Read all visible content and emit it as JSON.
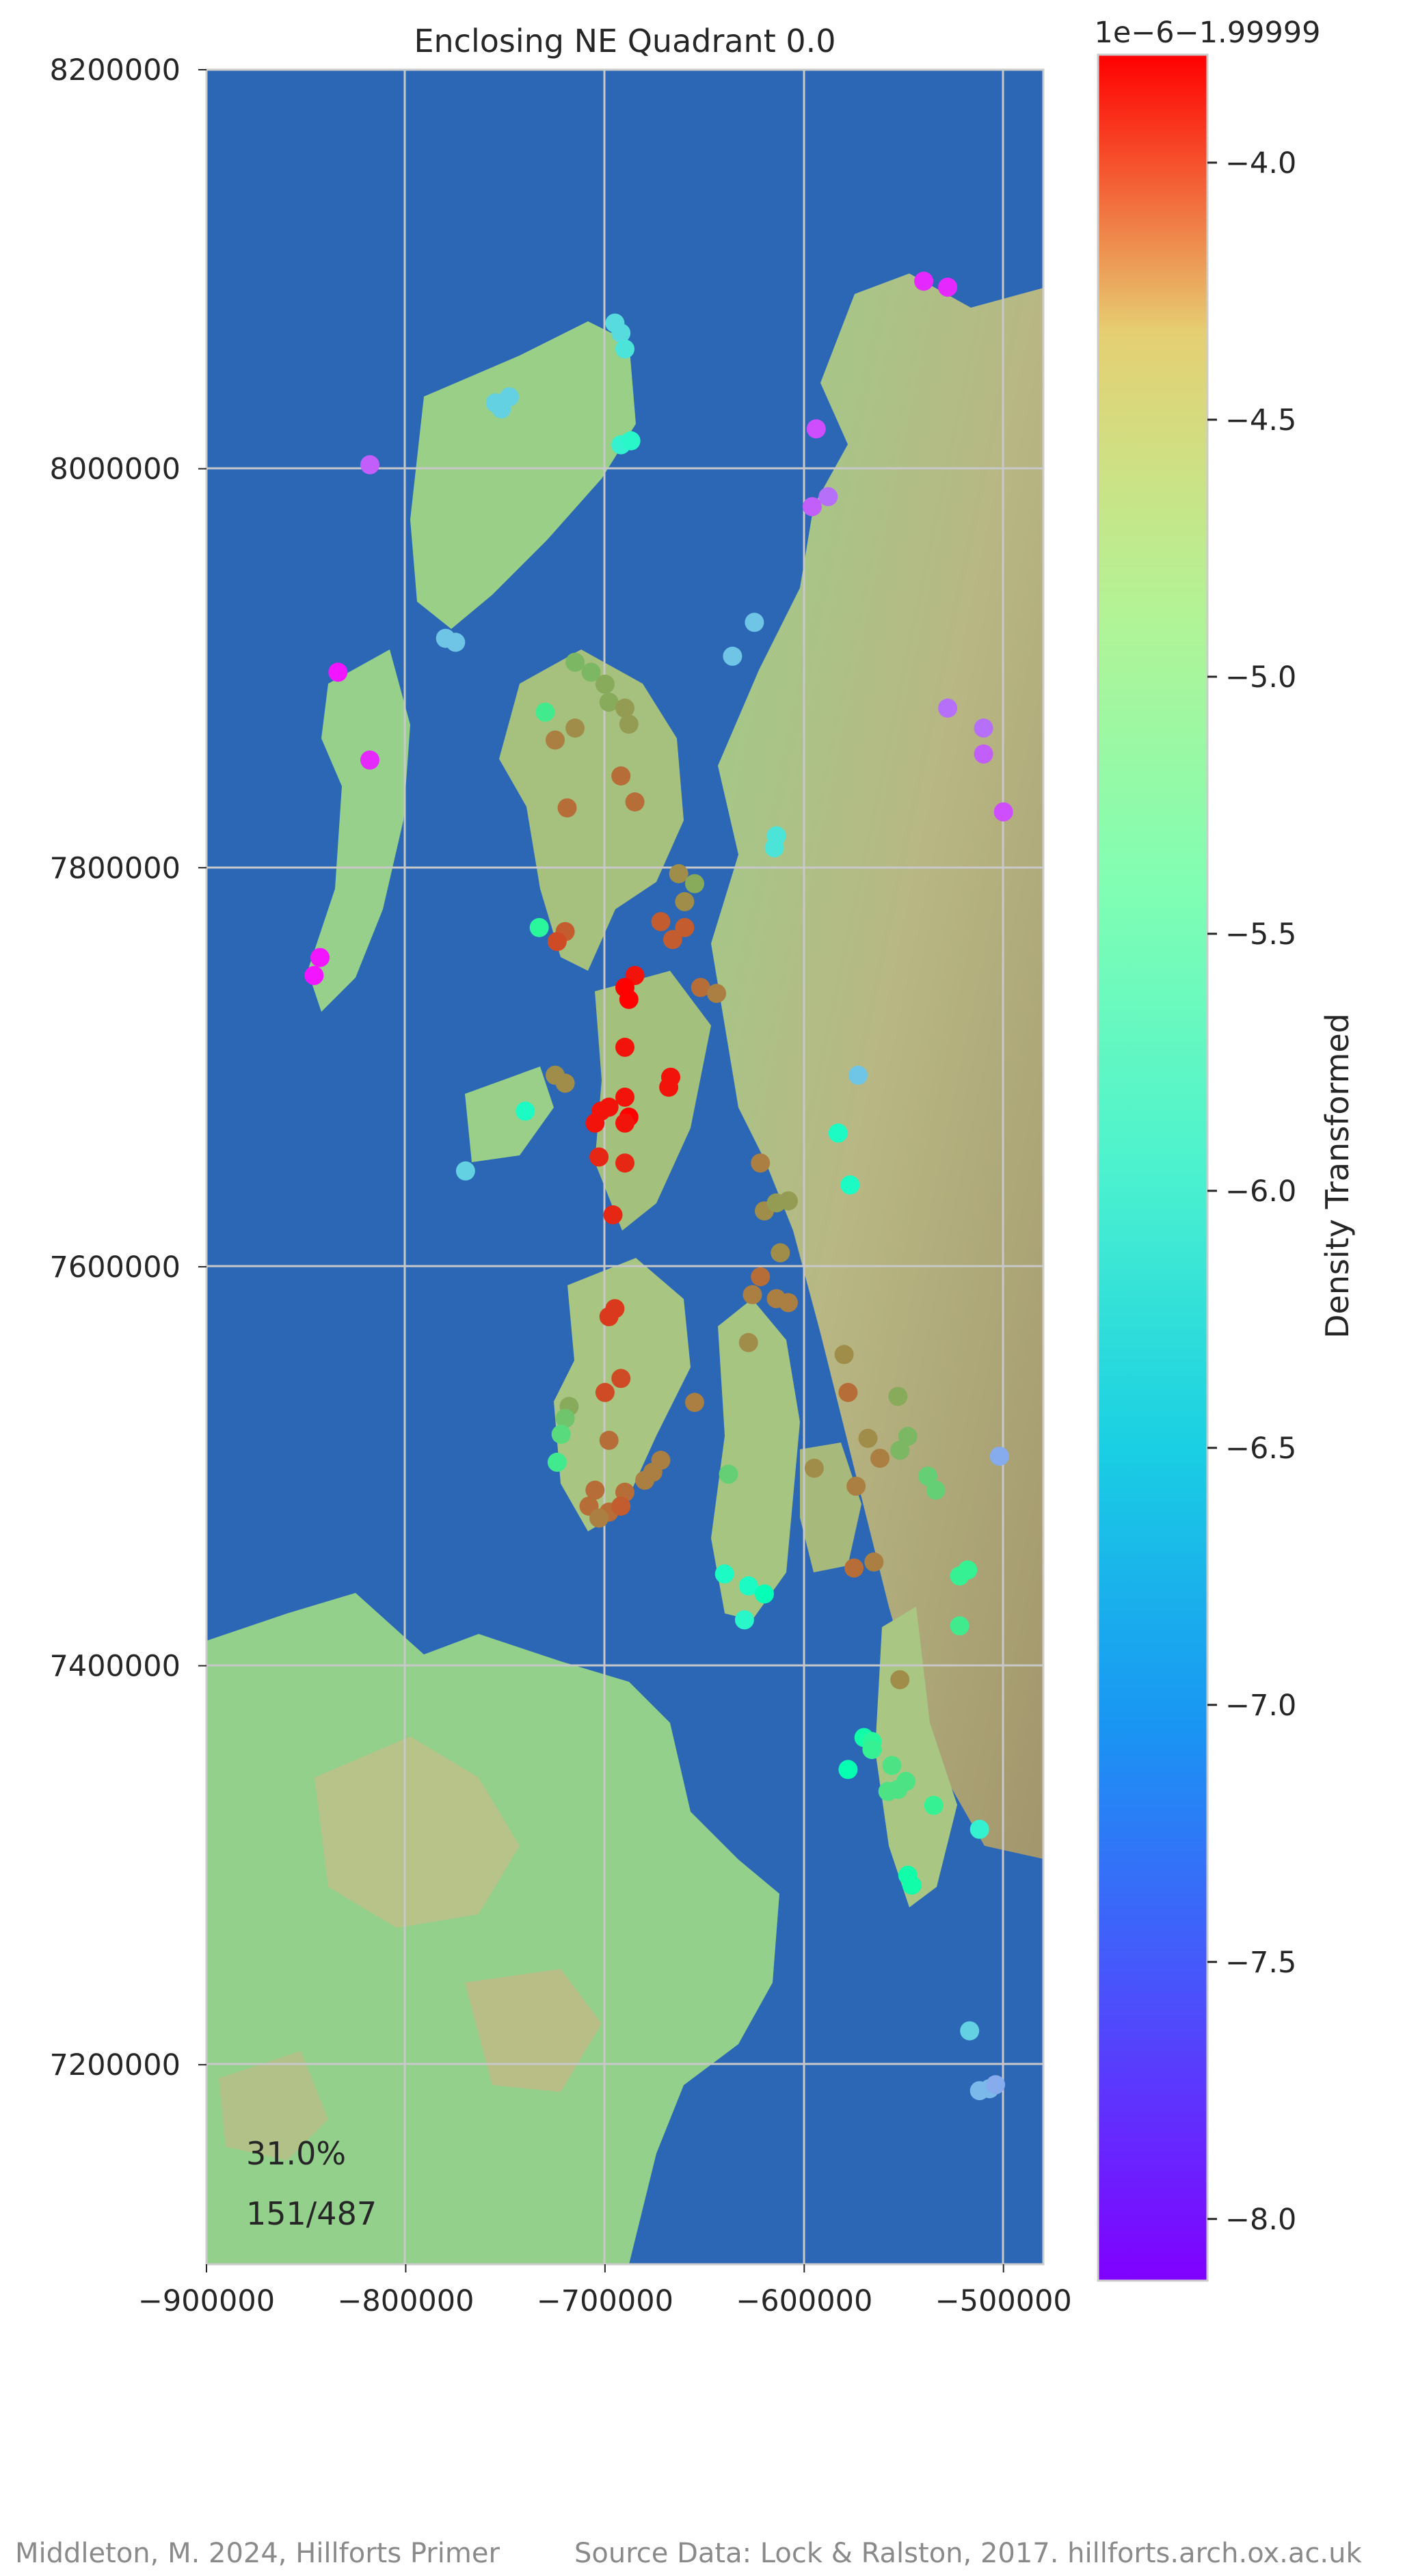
{
  "chart_data": {
    "type": "scatter",
    "title": "Enclosing NE Quadrant 0.0",
    "xlabel": "",
    "ylabel": "",
    "xlim": [
      -900000,
      -480000
    ],
    "ylim": [
      7100000,
      8200000
    ],
    "x_ticks": [
      -900000,
      -800000,
      -700000,
      -600000,
      -500000
    ],
    "x_tick_labels": [
      "−900000",
      "−800000",
      "−700000",
      "−600000",
      "−500000"
    ],
    "y_ticks": [
      8200000,
      8000000,
      7800000,
      7600000,
      7400000,
      7200000
    ],
    "y_tick_labels": [
      "8200000",
      "8000000",
      "7800000",
      "7600000",
      "7400000",
      "7200000"
    ],
    "grid": true,
    "annotations": [
      "31.0%",
      "151/487"
    ],
    "colorbar": {
      "label": "Density Transformed",
      "offset_text": "1e−6−1.99999",
      "colormap": "rainbow",
      "range": [
        -8.12,
        -3.79
      ],
      "ticks": [
        -4.0,
        -4.5,
        -5.0,
        -5.5,
        -6.0,
        -6.5,
        -7.0,
        -7.5,
        -8.0
      ],
      "tick_labels": [
        "−4.0",
        "−4.5",
        "−5.0",
        "−5.5",
        "−6.0",
        "−6.5",
        "−7.0",
        "−7.5",
        "−8.0"
      ]
    },
    "points": [
      [
        -540000,
        8094000,
        -7.9
      ],
      [
        -528000,
        8091000,
        -7.9
      ],
      [
        -818000,
        8002000,
        -7.6
      ],
      [
        -695000,
        8073000,
        -6.7
      ],
      [
        -692000,
        8068000,
        -6.7
      ],
      [
        -690000,
        8060000,
        -6.6
      ],
      [
        -755000,
        8033000,
        -6.8
      ],
      [
        -748000,
        8036000,
        -6.8
      ],
      [
        -752000,
        8030000,
        -6.8
      ],
      [
        -692000,
        8012000,
        -6.4
      ],
      [
        -687000,
        8014000,
        -6.3
      ],
      [
        -594000,
        8020000,
        -7.7
      ],
      [
        -588000,
        7986000,
        -7.5
      ],
      [
        -596000,
        7981000,
        -7.6
      ],
      [
        -780000,
        7915000,
        -6.9
      ],
      [
        -775000,
        7913000,
        -6.9
      ],
      [
        -625000,
        7923000,
        -6.9
      ],
      [
        -636000,
        7906000,
        -6.9
      ],
      [
        -834000,
        7898000,
        -8.0
      ],
      [
        -818000,
        7854000,
        -7.9
      ],
      [
        -715000,
        7903000,
        -4.9
      ],
      [
        -707000,
        7898000,
        -4.9
      ],
      [
        -700000,
        7892000,
        -4.8
      ],
      [
        -730000,
        7878000,
        -5.4
      ],
      [
        -698000,
        7883000,
        -4.8
      ],
      [
        -690000,
        7880000,
        -4.7
      ],
      [
        -688000,
        7872000,
        -4.7
      ],
      [
        -715000,
        7870000,
        -4.6
      ],
      [
        -725000,
        7864000,
        -4.5
      ],
      [
        -692000,
        7846000,
        -4.4
      ],
      [
        -685000,
        7833000,
        -4.4
      ],
      [
        -719000,
        7830000,
        -4.4
      ],
      [
        -528000,
        7880000,
        -7.5
      ],
      [
        -510000,
        7870000,
        -7.5
      ],
      [
        -510000,
        7857000,
        -7.6
      ],
      [
        -500000,
        7828000,
        -7.7
      ],
      [
        -614000,
        7816000,
        -6.6
      ],
      [
        -615000,
        7810000,
        -6.6
      ],
      [
        -663000,
        7797000,
        -4.6
      ],
      [
        -655000,
        7792000,
        -4.8
      ],
      [
        -660000,
        7783000,
        -4.6
      ],
      [
        -672000,
        7773000,
        -4.3
      ],
      [
        -660000,
        7770000,
        -4.3
      ],
      [
        -666000,
        7764000,
        -4.3
      ],
      [
        -733000,
        7770000,
        -5.6
      ],
      [
        -720000,
        7768000,
        -4.3
      ],
      [
        -724000,
        7763000,
        -4.2
      ],
      [
        -652000,
        7740000,
        -4.4
      ],
      [
        -644000,
        7737000,
        -4.5
      ],
      [
        -843000,
        7755000,
        -8.0
      ],
      [
        -846000,
        7746000,
        -8.0
      ],
      [
        -685000,
        7746000,
        -3.9
      ],
      [
        -690000,
        7740000,
        -3.8
      ],
      [
        -688000,
        7734000,
        -3.8
      ],
      [
        -690000,
        7710000,
        -3.9
      ],
      [
        -667000,
        7695000,
        -3.9
      ],
      [
        -668000,
        7690000,
        -3.9
      ],
      [
        -725000,
        7696000,
        -4.6
      ],
      [
        -720000,
        7692000,
        -4.6
      ],
      [
        -690000,
        7685000,
        -3.9
      ],
      [
        -698000,
        7680000,
        -3.9
      ],
      [
        -702000,
        7678000,
        -3.9
      ],
      [
        -688000,
        7675000,
        -3.8
      ],
      [
        -705000,
        7672000,
        -3.9
      ],
      [
        -690000,
        7672000,
        -3.9
      ],
      [
        -740000,
        7678000,
        -6.2
      ],
      [
        -770000,
        7648000,
        -6.8
      ],
      [
        -703000,
        7655000,
        -4.0
      ],
      [
        -690000,
        7652000,
        -4.0
      ],
      [
        -583000,
        7667000,
        -6.2
      ],
      [
        -573000,
        7696000,
        -6.9
      ],
      [
        -577000,
        7641000,
        -6.2
      ],
      [
        -622000,
        7652000,
        -4.5
      ],
      [
        -620000,
        7628000,
        -4.6
      ],
      [
        -614000,
        7632000,
        -4.7
      ],
      [
        -608000,
        7633000,
        -4.7
      ],
      [
        -696000,
        7626000,
        -4.0
      ],
      [
        -612000,
        7607000,
        -4.6
      ],
      [
        -622000,
        7595000,
        -4.4
      ],
      [
        -626000,
        7586000,
        -4.5
      ],
      [
        -614000,
        7584000,
        -4.5
      ],
      [
        -608000,
        7582000,
        -4.5
      ],
      [
        -695000,
        7579000,
        -4.1
      ],
      [
        -698000,
        7575000,
        -4.1
      ],
      [
        -628000,
        7562000,
        -4.6
      ],
      [
        -580000,
        7556000,
        -4.6
      ],
      [
        -578000,
        7537000,
        -4.4
      ],
      [
        -553000,
        7535000,
        -4.8
      ],
      [
        -692000,
        7544000,
        -4.2
      ],
      [
        -700000,
        7537000,
        -4.2
      ],
      [
        -655000,
        7532000,
        -4.5
      ],
      [
        -718000,
        7530000,
        -4.8
      ],
      [
        -720000,
        7524000,
        -5.0
      ],
      [
        -722000,
        7516000,
        -5.2
      ],
      [
        -698000,
        7513000,
        -4.4
      ],
      [
        -568000,
        7514000,
        -4.6
      ],
      [
        -562000,
        7504000,
        -4.5
      ],
      [
        -548000,
        7515000,
        -4.9
      ],
      [
        -552000,
        7508000,
        -4.9
      ],
      [
        -502000,
        7505000,
        -7.1
      ],
      [
        -724000,
        7502000,
        -5.4
      ],
      [
        -672000,
        7503000,
        -4.5
      ],
      [
        -676000,
        7497000,
        -4.5
      ],
      [
        -680000,
        7493000,
        -4.5
      ],
      [
        -595000,
        7499000,
        -4.6
      ],
      [
        -638000,
        7496000,
        -5.1
      ],
      [
        -538000,
        7495000,
        -5.1
      ],
      [
        -534000,
        7488000,
        -5.1
      ],
      [
        -574000,
        7490000,
        -4.5
      ],
      [
        -705000,
        7488000,
        -4.4
      ],
      [
        -690000,
        7487000,
        -4.4
      ],
      [
        -708000,
        7480000,
        -4.4
      ],
      [
        -698000,
        7477000,
        -4.4
      ],
      [
        -703000,
        7474000,
        -4.5
      ],
      [
        -692000,
        7480000,
        -4.3
      ],
      [
        -565000,
        7452000,
        -4.5
      ],
      [
        -575000,
        7449000,
        -4.4
      ],
      [
        -640000,
        7446000,
        -6.2
      ],
      [
        -628000,
        7440000,
        -6.2
      ],
      [
        -620000,
        7436000,
        -6.0
      ],
      [
        -630000,
        7423000,
        -6.3
      ],
      [
        -522000,
        7445000,
        -5.5
      ],
      [
        -518000,
        7448000,
        -5.5
      ],
      [
        -522000,
        7420000,
        -5.4
      ],
      [
        -552000,
        7393000,
        -4.6
      ],
      [
        -570000,
        7364000,
        -5.8
      ],
      [
        -566000,
        7362000,
        -5.6
      ],
      [
        -566000,
        7358000,
        -5.5
      ],
      [
        -578000,
        7348000,
        -5.9
      ],
      [
        -556000,
        7350000,
        -5.3
      ],
      [
        -549000,
        7342000,
        -5.3
      ],
      [
        -553000,
        7338000,
        -5.3
      ],
      [
        -558000,
        7337000,
        -5.3
      ],
      [
        -535000,
        7330000,
        -5.5
      ],
      [
        -512000,
        7318000,
        -6.4
      ],
      [
        -548000,
        7295000,
        -5.8
      ],
      [
        -546000,
        7290000,
        -5.8
      ],
      [
        -517000,
        7217000,
        -6.8
      ],
      [
        -512000,
        7187000,
        -7.0
      ],
      [
        -507000,
        7188000,
        -7.0
      ],
      [
        -504000,
        7190000,
        -7.1
      ]
    ]
  },
  "footer": {
    "left": "Middleton, M. 2024, Hillforts Primer",
    "right": "Source Data: Lock & Ralston, 2017. hillforts.arch.ox.ac.uk"
  }
}
